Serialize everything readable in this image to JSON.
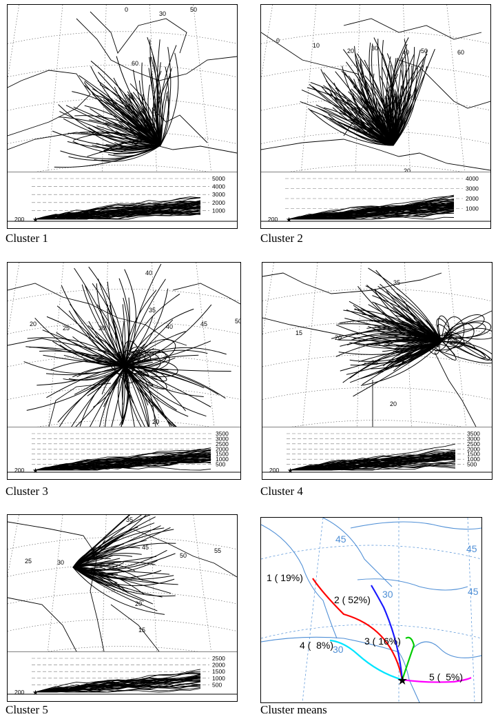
{
  "panels": [
    {
      "caption": "Cluster 1",
      "start_height": "200",
      "heights": [
        "5000",
        "4000",
        "3000",
        "2000",
        "1000"
      ],
      "map_labels": [
        "0",
        "30",
        "50",
        "60"
      ]
    },
    {
      "caption": "Cluster 2",
      "start_height": "200",
      "heights": [
        "4000",
        "3000",
        "2000",
        "1000"
      ],
      "map_labels": [
        "0",
        "10",
        "20",
        "30",
        "40",
        "50",
        "60",
        "20"
      ]
    },
    {
      "caption": "Cluster 3",
      "start_height": "200",
      "heights": [
        "3500",
        "3000",
        "2500",
        "2000",
        "1500",
        "1000",
        "500"
      ],
      "map_labels": [
        "40",
        "35",
        "20",
        "25",
        "30",
        "40",
        "45",
        "50",
        "20"
      ]
    },
    {
      "caption": "Cluster 4",
      "start_height": "200",
      "heights": [
        "3500",
        "3000",
        "2500",
        "2000",
        "1500",
        "1000",
        "500"
      ],
      "map_labels": [
        "35",
        "15",
        "20",
        "25",
        "25",
        "20"
      ]
    },
    {
      "caption": "Cluster 5",
      "start_height": "200",
      "heights": [
        "2500",
        "2000",
        "1500",
        "1000",
        "500"
      ],
      "map_labels": [
        "35",
        "25",
        "30",
        "45",
        "50",
        "55",
        "20",
        "15"
      ]
    }
  ],
  "means": {
    "caption": "Cluster means",
    "grid_labels": [
      "45",
      "45",
      "30",
      "45",
      "30"
    ],
    "clusters": [
      {
        "label": "1 ( 19%)",
        "color": "#ff0000"
      },
      {
        "label": "2 ( 52%)",
        "color": "#1a1aff"
      },
      {
        "label": "3 ( 16%)",
        "color": "#00cc00"
      },
      {
        "label": "4 (  8%)",
        "color": "#00e5ff"
      },
      {
        "label": "5 (  5%)",
        "color": "#ff00ff"
      }
    ]
  }
}
